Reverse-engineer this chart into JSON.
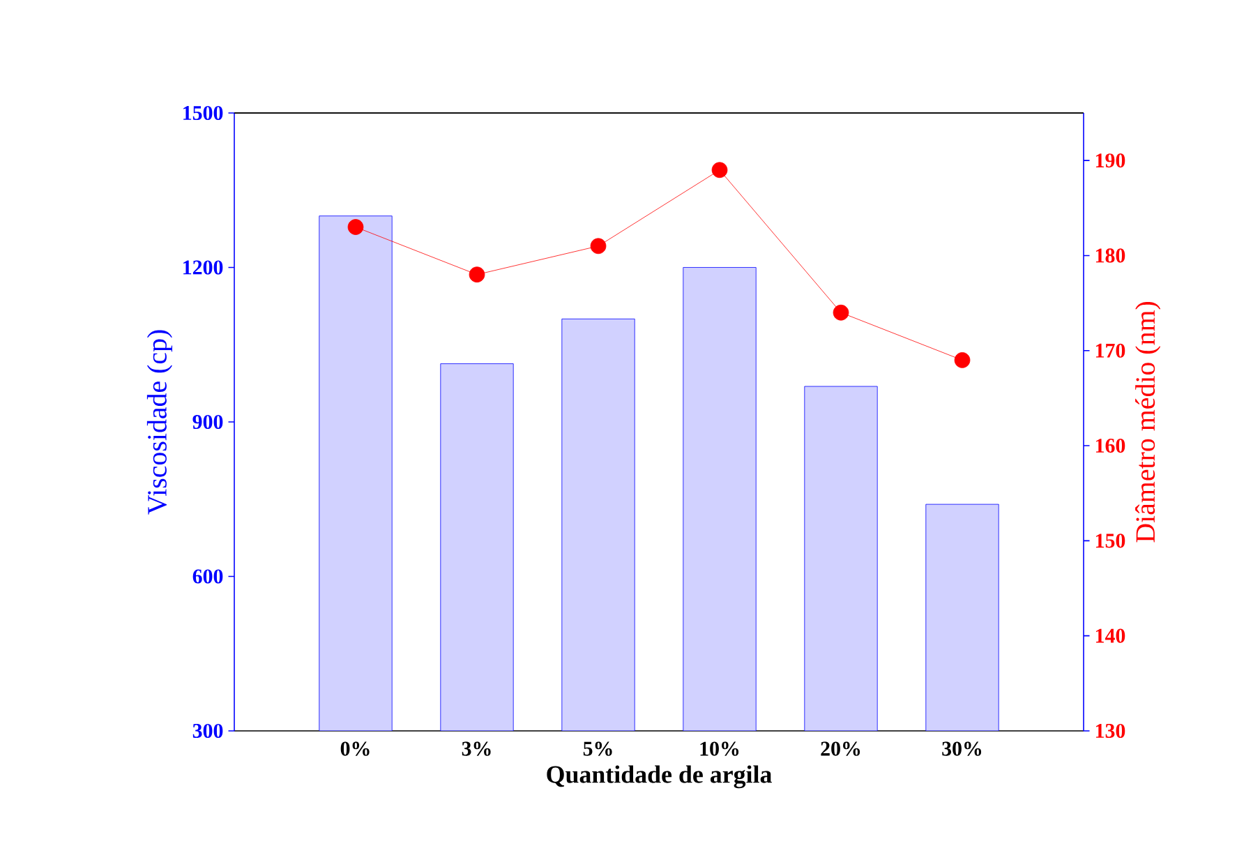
{
  "chart_data": {
    "type": "bar",
    "xlabel": "Quantidade de argila",
    "ylabel": "Viscosidade (cp)",
    "y2label": "Diâmetro médio (nm)",
    "categories": [
      "0%",
      "3%",
      "5%",
      "10%",
      "20%",
      "30%"
    ],
    "series": [
      {
        "color": "#0000ff",
        "values": [
          1300,
          1013,
          1100,
          1200,
          969,
          740
        ]
      },
      {
        "type": "line",
        "axis": "y2",
        "color": "#ff0000",
        "values": [
          183,
          178,
          181,
          189,
          174,
          169
        ]
      }
    ],
    "ylim": [
      300,
      1500
    ],
    "yticks": [
      300,
      600,
      900,
      1200,
      1500
    ],
    "y2lim": [
      130,
      195
    ],
    "y2ticks": [
      130,
      140,
      150,
      160,
      170,
      180,
      190
    ],
    "marker": "circle"
  }
}
